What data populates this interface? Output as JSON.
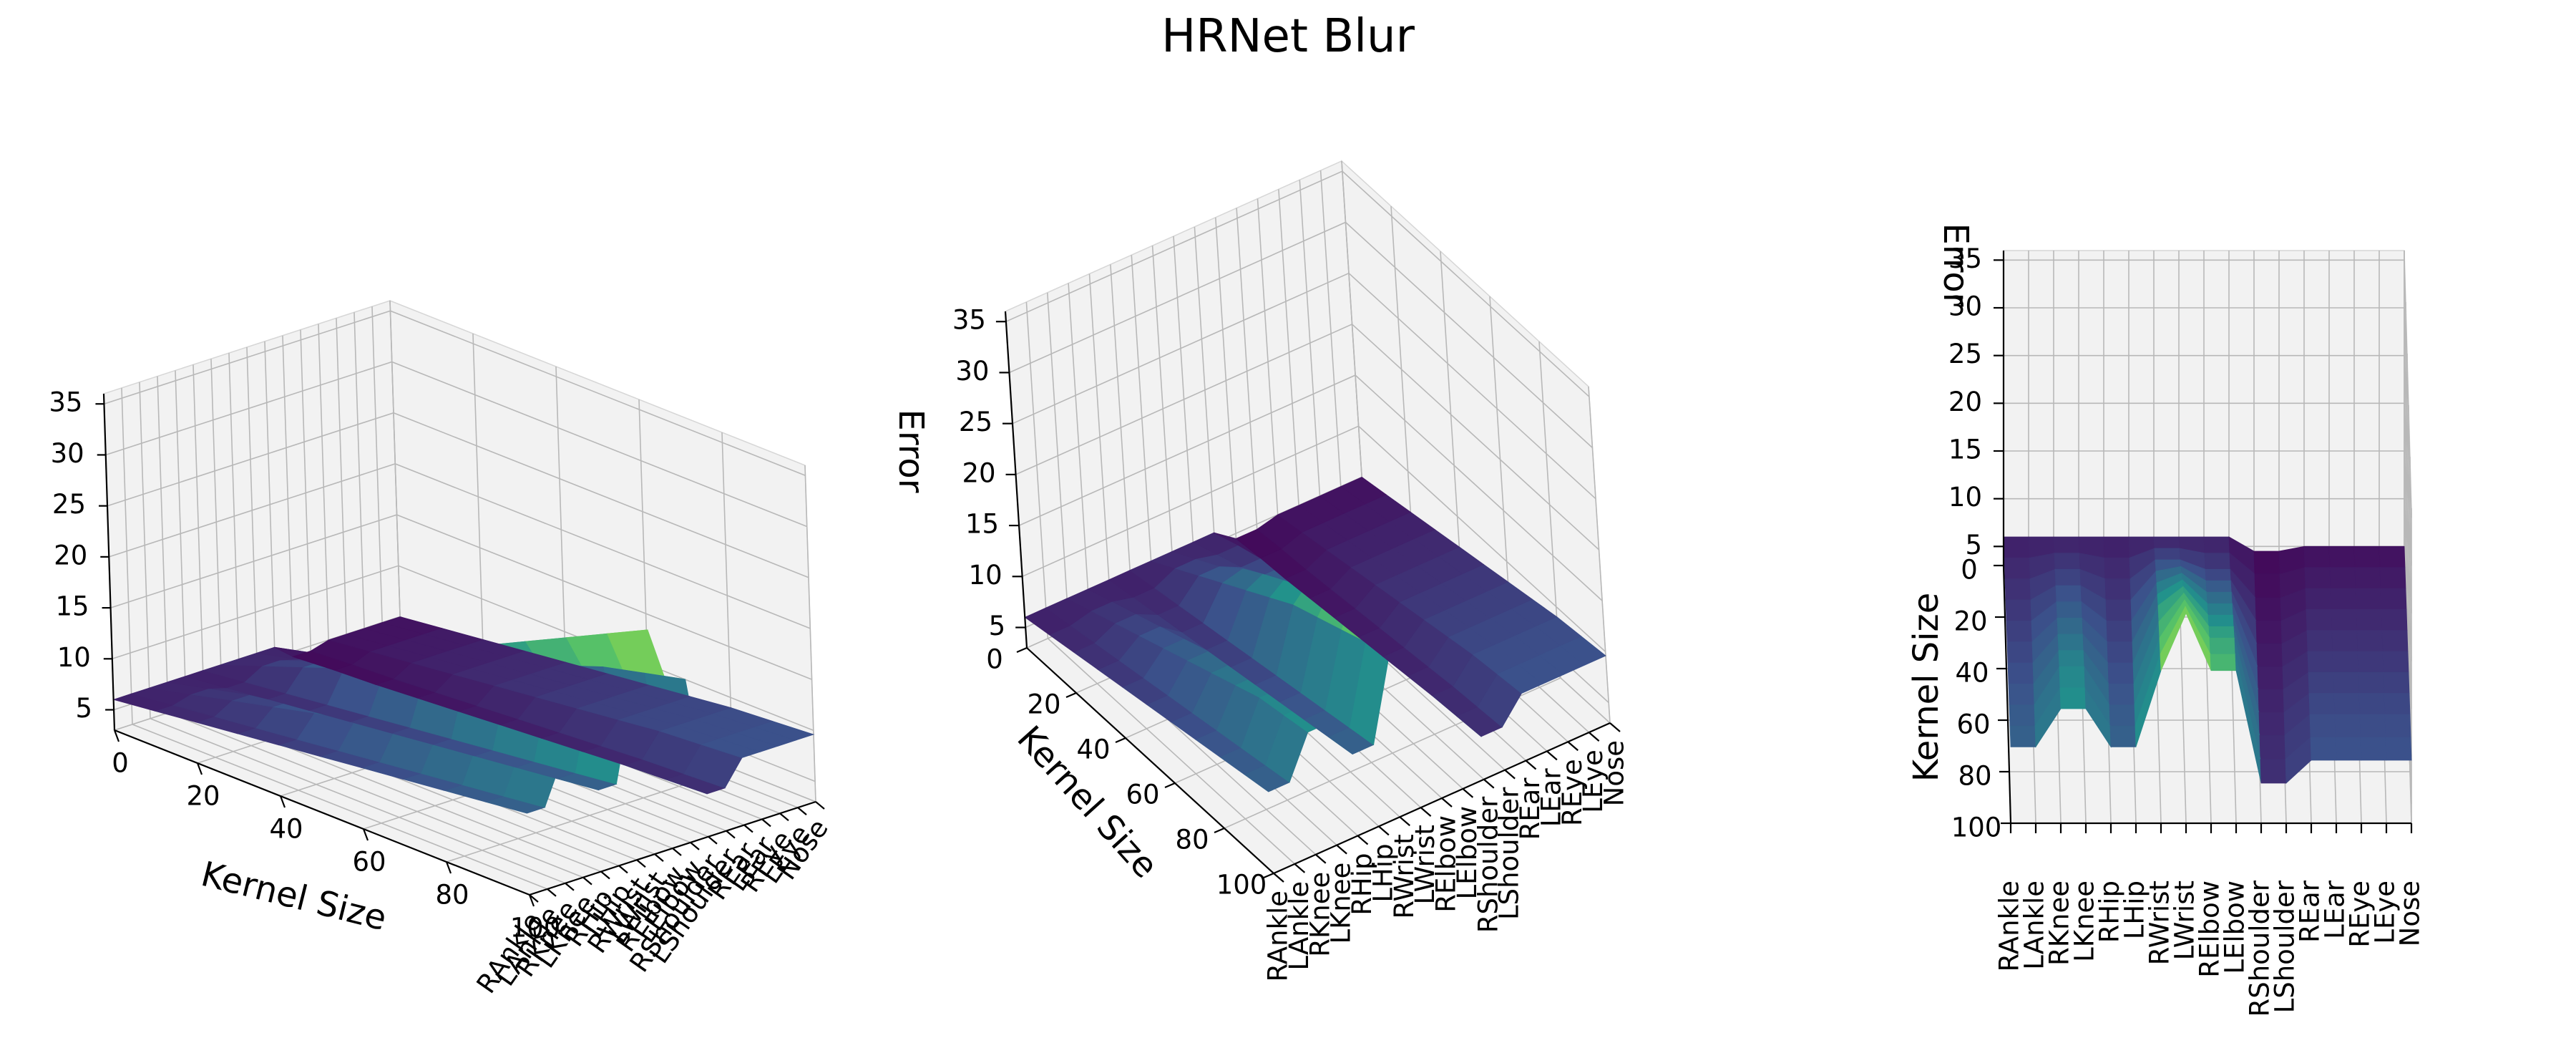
{
  "title": "HRNet Blur",
  "colormap": "viridis",
  "colormap_stops": [
    "#440154",
    "#3b528b",
    "#21918c",
    "#5ec962",
    "#fde725"
  ],
  "chart_data": [
    {
      "type": "surface",
      "view": "oblique",
      "zlabel": "",
      "xlabel": "Kernel Size",
      "ylabel": "",
      "x_ticks": [
        0,
        20,
        40,
        60,
        80,
        100
      ],
      "z_ticks": [
        5,
        10,
        15,
        20,
        25,
        30,
        35
      ],
      "y_ticks": [
        "RAnkle",
        "LAnkle",
        "RKnee",
        "LKnee",
        "RHip",
        "LHip",
        "RWrist",
        "LWrist",
        "RElbow",
        "LElbow",
        "RShoulder",
        "LShoulder",
        "REar",
        "LEar",
        "REye",
        "LEye",
        "Nose"
      ]
    },
    {
      "type": "surface",
      "view": "oblique",
      "zlabel": "Error",
      "xlabel": "Kernel Size",
      "ylabel": "",
      "x_ticks": [
        0,
        20,
        40,
        60,
        80,
        100
      ],
      "z_ticks": [
        5,
        10,
        15,
        20,
        25,
        30,
        35
      ],
      "y_ticks": [
        "RAnkle",
        "LAnkle",
        "RKnee",
        "LKnee",
        "RHip",
        "LHip",
        "RWrist",
        "LWrist",
        "RElbow",
        "LElbow",
        "RShoulder",
        "LShoulder",
        "REar",
        "LEar",
        "REye",
        "LEye",
        "Nose"
      ]
    },
    {
      "type": "surface",
      "view": "top-down",
      "zlabel": "Error",
      "xlabel": "Kernel Size",
      "ylabel": "",
      "x_ticks": [
        0,
        20,
        40,
        60,
        80,
        100
      ],
      "z_ticks": [
        5,
        10,
        15,
        20,
        25,
        30,
        35
      ],
      "y_ticks": [
        "RAnkle",
        "LAnkle",
        "RKnee",
        "LKnee",
        "RHip",
        "LHip",
        "RWrist",
        "LWrist",
        "RElbow",
        "LElbow",
        "RShoulder",
        "LShoulder",
        "REar",
        "LEar",
        "REye",
        "LEye",
        "Nose"
      ]
    }
  ],
  "surface": {
    "joints": [
      "RAnkle",
      "LAnkle",
      "RKnee",
      "LKnee",
      "RHip",
      "LHip",
      "RWrist",
      "LWrist",
      "RElbow",
      "LElbow",
      "RShoulder",
      "LShoulder",
      "REar",
      "LEar",
      "REye",
      "LEye",
      "Nose"
    ],
    "kernel_sizes": [
      0,
      10,
      20,
      30,
      40,
      50,
      60,
      70,
      80,
      90,
      100
    ],
    "error": [
      [
        6,
        6.5,
        7,
        7.5,
        8,
        8.5,
        9,
        9.5,
        10,
        10.5,
        11
      ],
      [
        6,
        6.5,
        7,
        7.5,
        8,
        8.5,
        9,
        9.5,
        10,
        10.5,
        11
      ],
      [
        6,
        7,
        8,
        9,
        10,
        11,
        12,
        13,
        14,
        14.5,
        15
      ],
      [
        6,
        7,
        8,
        9,
        10,
        11,
        12,
        13,
        14,
        14.5,
        15
      ],
      [
        6,
        6.5,
        7,
        7.5,
        8,
        8.5,
        9,
        9.5,
        10,
        10.5,
        11
      ],
      [
        6,
        6.5,
        7,
        7.5,
        8,
        8.5,
        9,
        9.5,
        10,
        10.5,
        11
      ],
      [
        6,
        7.5,
        9,
        10.5,
        12,
        13.5,
        15,
        16,
        17,
        18,
        19
      ],
      [
        6,
        7.5,
        9,
        11,
        13,
        15,
        17,
        19,
        21,
        23,
        25
      ],
      [
        6,
        7,
        8,
        9.5,
        11,
        12.5,
        14,
        15.5,
        17,
        18,
        19
      ],
      [
        6,
        7,
        8,
        9.5,
        11,
        12.5,
        14,
        15.5,
        17,
        18,
        19
      ],
      [
        4.5,
        4.8,
        5,
        5.3,
        5.6,
        5.9,
        6.2,
        6.5,
        6.8,
        7,
        7.2
      ],
      [
        4.5,
        4.8,
        5,
        5.3,
        5.6,
        5.9,
        6.2,
        6.5,
        6.8,
        7,
        7.2
      ],
      [
        5,
        5.5,
        6,
        6.5,
        7,
        7.5,
        8,
        8.5,
        9,
        9.3,
        9.6
      ],
      [
        5,
        5.5,
        6,
        6.5,
        7,
        7.5,
        8,
        8.5,
        9,
        9.3,
        9.6
      ],
      [
        5,
        5.5,
        6,
        6.5,
        7,
        7.5,
        8,
        8.5,
        9,
        9.3,
        9.6
      ],
      [
        5,
        5.5,
        6,
        6.5,
        7,
        7.5,
        8,
        8.5,
        9,
        9.3,
        9.6
      ],
      [
        5,
        5.5,
        6,
        6.5,
        7,
        7.5,
        8,
        8.5,
        9,
        9.3,
        9.6
      ]
    ]
  }
}
